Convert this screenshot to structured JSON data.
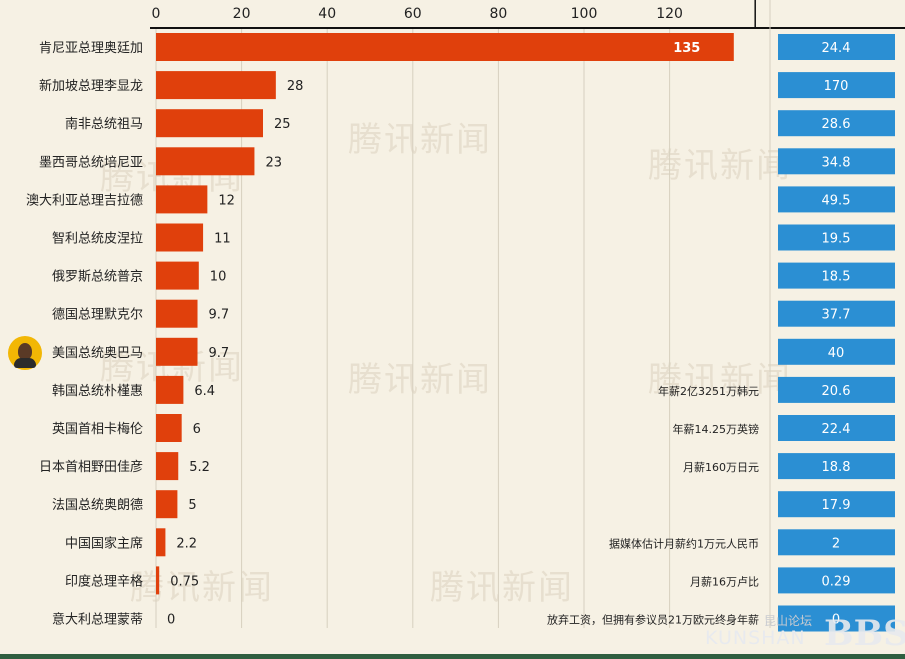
{
  "watermark": "腾讯新闻",
  "forum_logo": {
    "cn": "昆山论坛",
    "en": "KUNSHAN",
    "bbs": "BBS"
  },
  "colors": {
    "bar": "#e0400c",
    "box": "#2b8fd3",
    "background": "#f6f1e4",
    "grid": "#d7d0bf",
    "text": "#222222"
  },
  "chart_data": {
    "type": "bar",
    "orientation": "horizontal",
    "xlim": [
      0,
      140
    ],
    "xticks": [
      0,
      20,
      40,
      60,
      80,
      100,
      120
    ],
    "grid": true,
    "categories": [
      "肯尼亚总理奥廷加",
      "新加坡总理李显龙",
      "南非总统祖马",
      "墨西哥总统培尼亚",
      "澳大利亚总理吉拉德",
      "智利总统皮涅拉",
      "俄罗斯总统普京",
      "德国总理默克尔",
      "美国总统奥巴马",
      "韩国总统朴槿惠",
      "英国首相卡梅伦",
      "日本首相野田佳彦",
      "法国总统奥朗德",
      "中国国家主席",
      "印度总理辛格",
      "意大利总理蒙蒂"
    ],
    "values": [
      135,
      28,
      25,
      23,
      12,
      11,
      10,
      9.7,
      9.7,
      6.4,
      6,
      5.2,
      5,
      2.2,
      0.75,
      0
    ],
    "value_labels": [
      "135",
      "28",
      "25",
      "23",
      "12",
      "11",
      "10",
      "9.7",
      "9.7",
      "6.4",
      "6",
      "5.2",
      "5",
      "2.2",
      "0.75",
      "0"
    ],
    "box_values": [
      "24.4",
      "170",
      "28.6",
      "34.8",
      "49.5",
      "19.5",
      "18.5",
      "37.7",
      "40",
      "20.6",
      "22.4",
      "18.8",
      "17.9",
      "2",
      "0.29",
      "0"
    ],
    "notes": [
      "",
      "",
      "",
      "",
      "",
      "",
      "",
      "",
      "",
      "年薪2亿3251万韩元",
      "年薪14.25万英镑",
      "月薪160万日元",
      "",
      "据媒体估计月薪约1万元人民币",
      "月薪16万卢比",
      "放弃工资，但拥有参议员21万欧元终身年薪"
    ]
  }
}
